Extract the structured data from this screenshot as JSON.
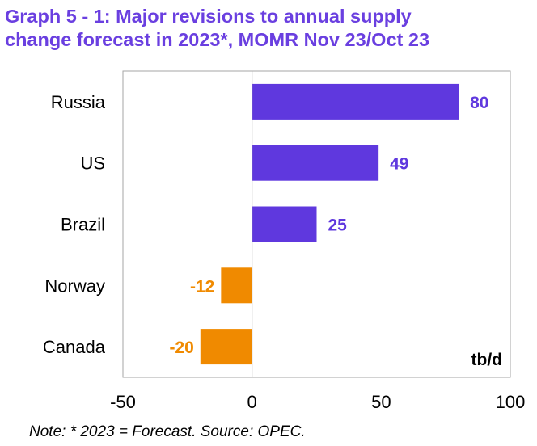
{
  "title_line1": "Graph 5 - 1: Major revisions to annual supply",
  "title_line2": "change forecast in 2023*, MOMR Nov 23/Oct 23",
  "note": "Note: * 2023 = Forecast. Source: OPEC.",
  "colors": {
    "positive": "#5f38de",
    "negative": "#f08a00",
    "title": "#6a3fe0"
  },
  "chart_data": {
    "type": "bar",
    "orientation": "horizontal",
    "categories": [
      "Russia",
      "US",
      "Brazil",
      "Norway",
      "Canada"
    ],
    "values": [
      80,
      49,
      25,
      -12,
      -20
    ],
    "value_labels": [
      "80",
      "49",
      "25",
      "-12",
      "-20"
    ],
    "unit": "tb/d",
    "xlim": [
      -50,
      100
    ],
    "xticks": [
      -50,
      0,
      50,
      100
    ],
    "xtick_labels": [
      "-50",
      "0",
      "50",
      "100"
    ],
    "grid": false
  }
}
